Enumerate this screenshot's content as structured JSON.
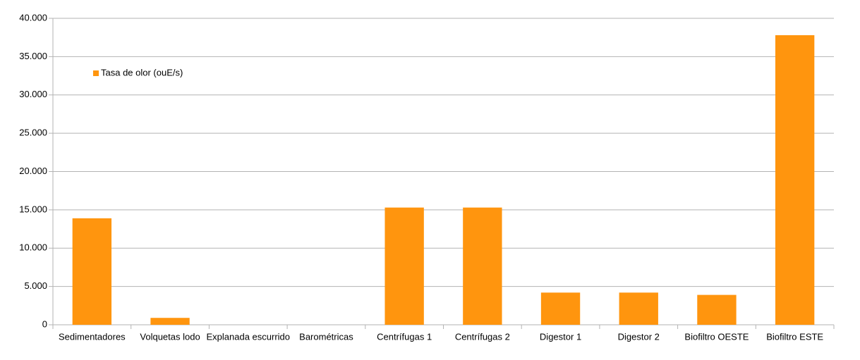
{
  "chart_data": {
    "type": "bar",
    "categories": [
      "Sedimentadores",
      "Volquetas lodo",
      "Explanada escurrido",
      "Barométricas",
      "Centrífugas 1",
      "Centrífugas 2",
      "Digestor 1",
      "Digestor 2",
      "Biofiltro OESTE",
      "Biofiltro ESTE"
    ],
    "series": [
      {
        "name": "Tasa de olor (ouE/s)",
        "color": "#ff950e",
        "values": [
          13900,
          900,
          0,
          0,
          15300,
          15300,
          4200,
          4200,
          3900,
          37800
        ]
      }
    ],
    "ylim": [
      0,
      40000
    ],
    "yticks": [
      0,
      {
        "value": 5000,
        "label": "5.000"
      },
      {
        "value": 10000,
        "label": "10.000"
      },
      {
        "value": 15000,
        "label": "15.000"
      },
      {
        "value": 20000,
        "label": "20.000"
      },
      {
        "value": 25000,
        "label": "25.000"
      },
      {
        "value": 30000,
        "label": "30.000"
      },
      {
        "value": 35000,
        "label": "35.000"
      },
      {
        "value": 40000,
        "label": "40.000"
      }
    ],
    "grid": true,
    "legend": "top-left"
  }
}
